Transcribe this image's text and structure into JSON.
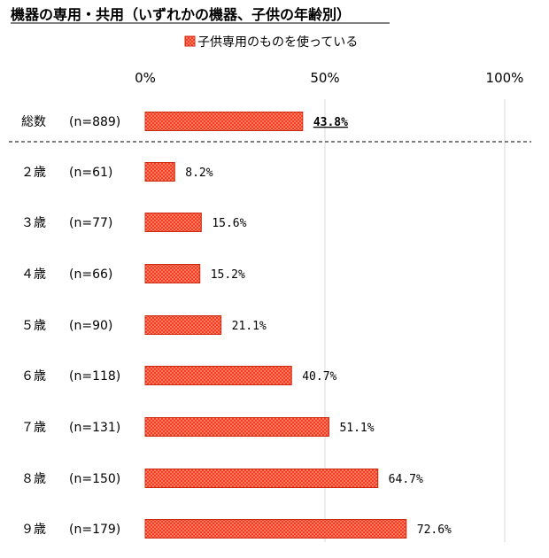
{
  "chart_data": {
    "type": "bar",
    "orientation": "horizontal",
    "title": "機器の専用・共用（いずれかの機器、子供の年齢別）",
    "legend": {
      "entries": [
        "子供専用のものを使っている"
      ],
      "placement": "top"
    },
    "xlim": [
      0,
      100
    ],
    "x_ticks": [
      "0%",
      "50%",
      "100%"
    ],
    "grid": true,
    "colors": {
      "bar_fill": "#f43c1e",
      "bar_dot": "#ffd7cc",
      "bar_stroke": "#cc2a10"
    },
    "categories": [
      "総数",
      "２歳",
      "３歳",
      "４歳",
      "５歳",
      "６歳",
      "７歳",
      "８歳",
      "９歳"
    ],
    "sample_sizes": [
      "(n=889)",
      "(n=61)",
      "(n=77)",
      "(n=66)",
      "(n=90)",
      "(n=118)",
      "(n=131)",
      "(n=150)",
      "(n=179)"
    ],
    "series": [
      {
        "name": "子供専用のものを使っている",
        "values": [
          43.8,
          8.2,
          15.6,
          15.2,
          21.1,
          40.7,
          51.1,
          64.7,
          72.6
        ],
        "labels": [
          "43.8%",
          "8.2%",
          "15.6%",
          "15.2%",
          "21.1%",
          "40.7%",
          "51.1%",
          "64.7%",
          "72.6%"
        ]
      }
    ]
  }
}
